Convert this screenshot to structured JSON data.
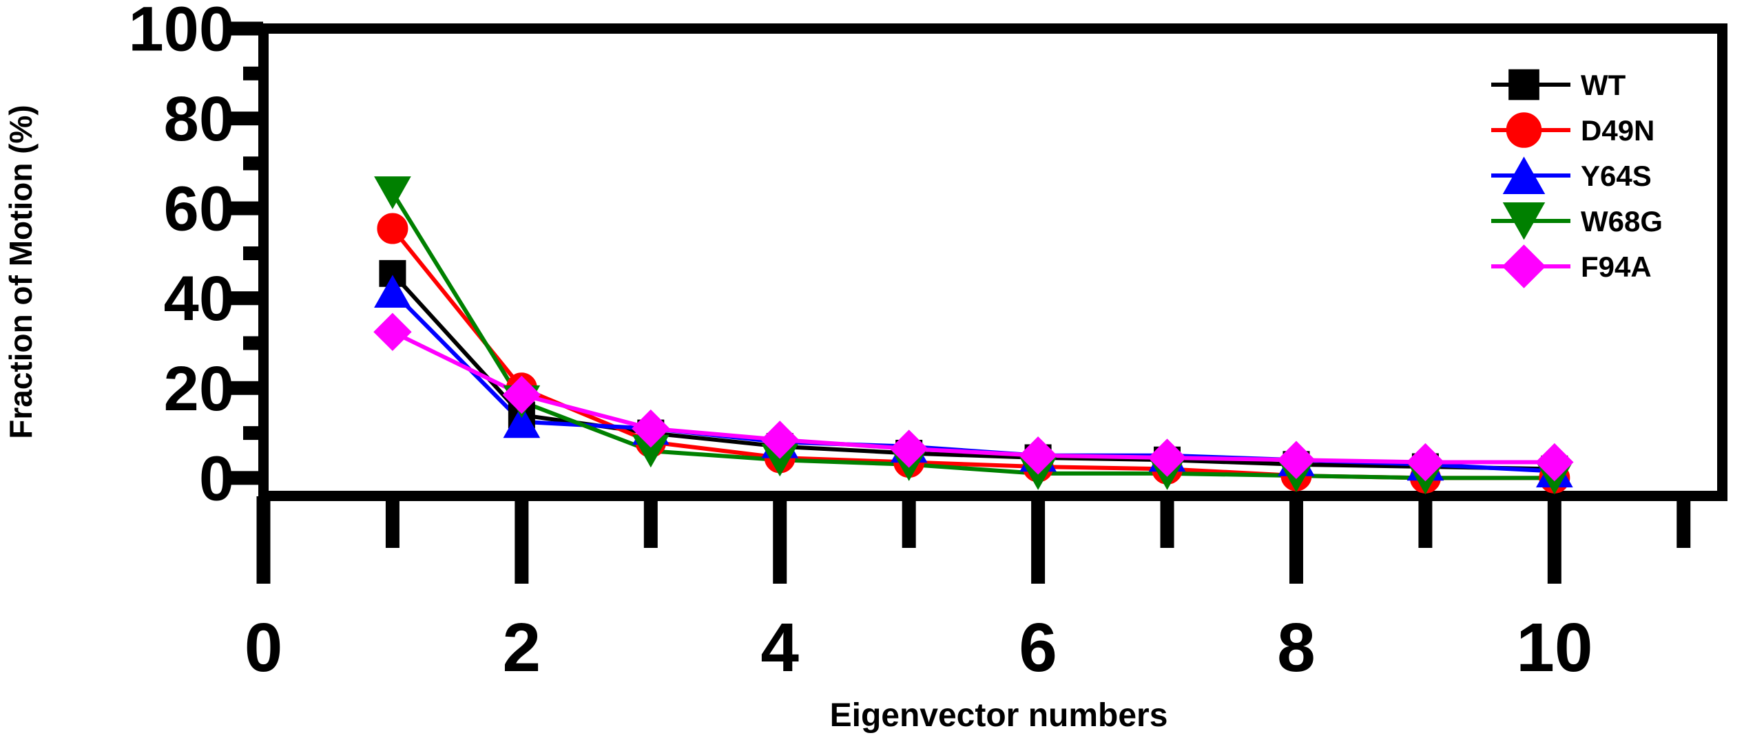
{
  "chart_data": {
    "type": "line",
    "xlabel": "Eigenvector numbers",
    "ylabel": "Fraction of Motion (%)",
    "xlim": [
      0,
      11.3
    ],
    "ylim": [
      -4,
      100
    ],
    "xticks": [
      "0",
      "2",
      "4",
      "6",
      "8",
      "10"
    ],
    "yticks": [
      "0",
      "20",
      "40",
      "60",
      "80",
      "100"
    ],
    "x": [
      1,
      2,
      3,
      4,
      5,
      6,
      7,
      8,
      9,
      10
    ],
    "legend_position": "top-right",
    "series": [
      {
        "name": "WT",
        "color": "#000000",
        "marker": "square",
        "values": [
          45.5,
          14,
          10,
          7,
          5.5,
          4.5,
          4,
          3,
          2.5,
          2
        ]
      },
      {
        "name": "D49N",
        "color": "#ff0000",
        "marker": "circle",
        "values": [
          55.5,
          20,
          8,
          4.5,
          3.5,
          2.5,
          2,
          0.5,
          0,
          0
        ]
      },
      {
        "name": "Y64S",
        "color": "#0000ff",
        "marker": "triangle-up",
        "values": [
          41.5,
          12.5,
          11,
          8,
          7,
          5,
          5,
          4,
          3,
          1.5
        ]
      },
      {
        "name": "W68G",
        "color": "#008000",
        "marker": "triangle-down",
        "values": [
          63.5,
          17,
          6,
          4,
          3,
          1,
          1,
          0.5,
          0,
          0
        ]
      },
      {
        "name": "F94A",
        "color": "#ff00ff",
        "marker": "diamond",
        "values": [
          32.5,
          18.5,
          11,
          8.5,
          6.5,
          5,
          4.5,
          4,
          3.5,
          3.5
        ]
      }
    ]
  }
}
